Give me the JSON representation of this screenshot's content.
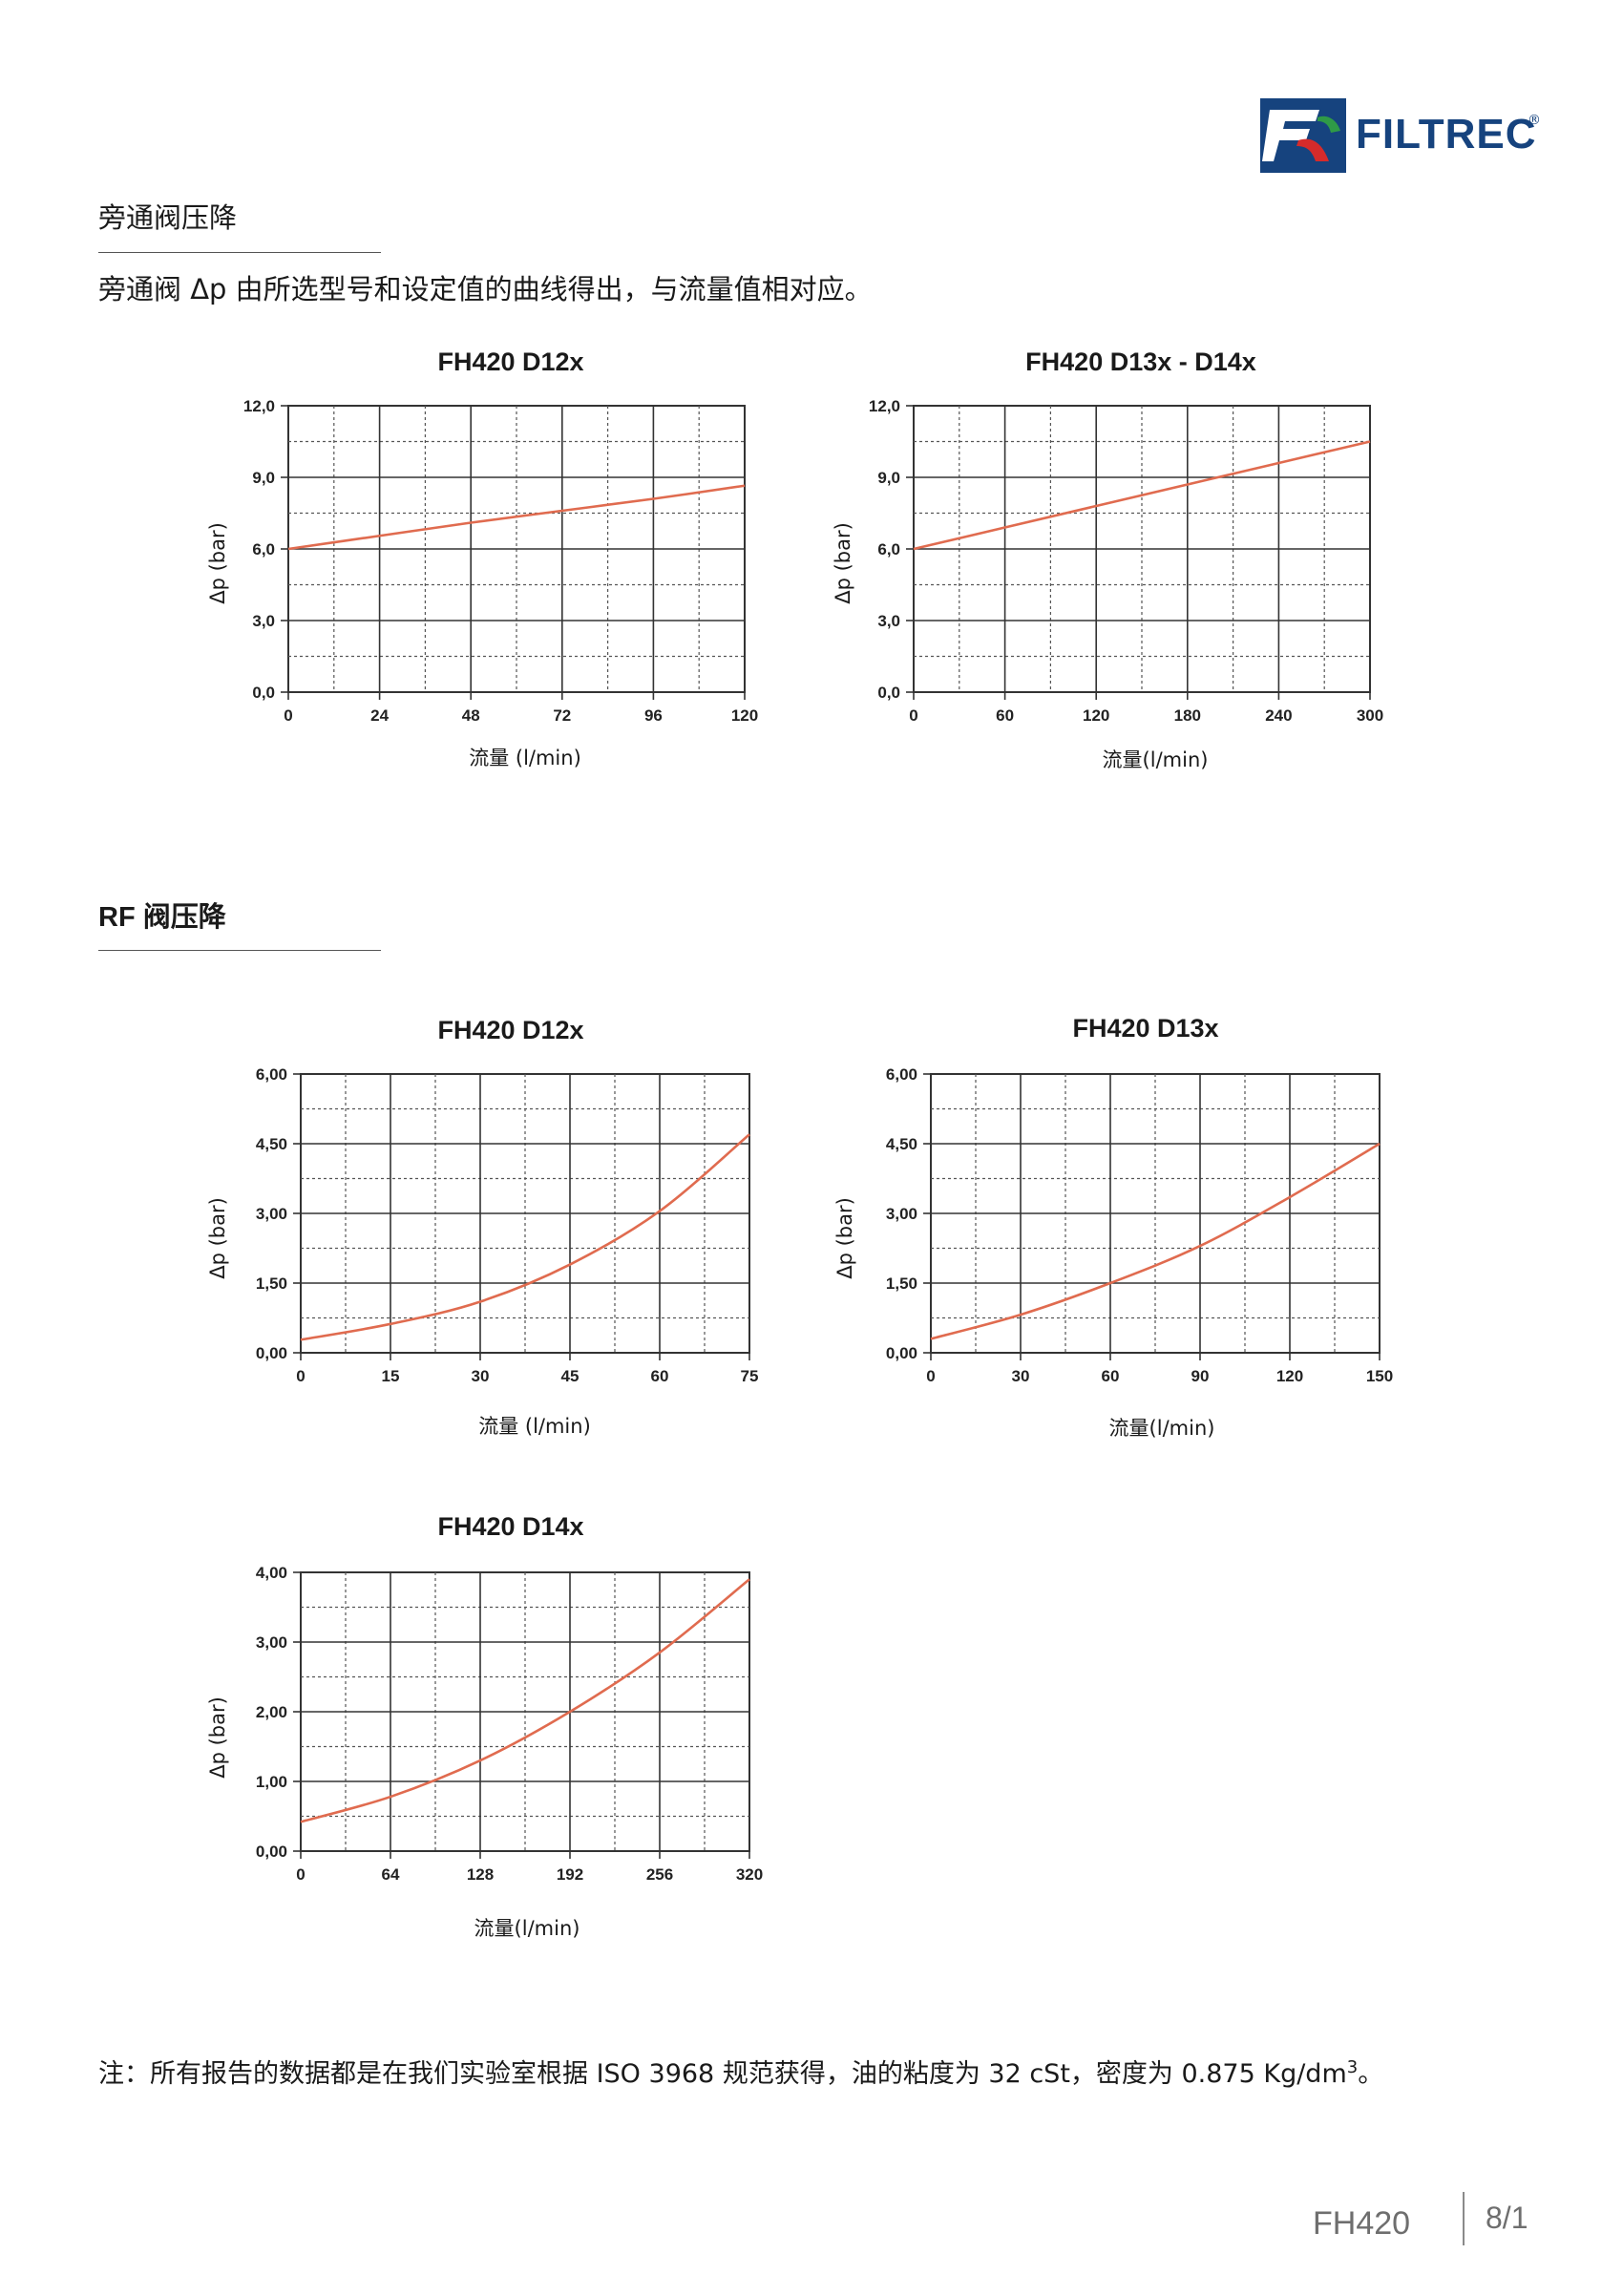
{
  "header": {
    "brand": "FILTREC",
    "brand_mark": "®",
    "colors": {
      "brand_blue": "#16437e",
      "brand_red": "#d52b2b",
      "brand_green": "#2f9a47"
    }
  },
  "section_bypass": {
    "title": "旁通阀压降",
    "description": "旁通阀 Δp 由所选型号和设定值的曲线得出，与流量值相对应。"
  },
  "section_rf": {
    "title": "RF 阀压降"
  },
  "note": {
    "text": "注：所有报告的数据都是在我们实验室根据 ISO 3968 规范获得，油的粘度为 32 cSt，密度为 0.875 Kg/dm",
    "sup": "3",
    "suffix": "。"
  },
  "footer": {
    "model": "FH420",
    "page": "8/1"
  },
  "chart_data": [
    {
      "id": "c1",
      "type": "line",
      "title": "FH420 D12x",
      "xlabel": "流量 (l/min)",
      "ylabel": "Δp (bar)",
      "xlim": [
        0,
        120
      ],
      "ylim": [
        0,
        12
      ],
      "xticks": [
        "0",
        "24",
        "48",
        "72",
        "96",
        "120"
      ],
      "yticks": [
        "0,0",
        "3,0",
        "6,0",
        "9,0",
        "12,0"
      ],
      "grid": true,
      "line_color": "#e06b4f",
      "x": [
        0,
        24,
        48,
        72,
        96,
        120
      ],
      "y": [
        6.0,
        6.55,
        7.1,
        7.6,
        8.1,
        8.65
      ]
    },
    {
      "id": "c2",
      "type": "line",
      "title": "FH420 D13x - D14x",
      "xlabel": "流量(l/min)",
      "ylabel": "Δp (bar)",
      "xlim": [
        0,
        300
      ],
      "ylim": [
        0,
        12
      ],
      "xticks": [
        "0",
        "60",
        "120",
        "180",
        "240",
        "300"
      ],
      "yticks": [
        "0,0",
        "3,0",
        "6,0",
        "9,0",
        "12,0"
      ],
      "grid": true,
      "line_color": "#e06b4f",
      "x": [
        0,
        60,
        120,
        180,
        240,
        300
      ],
      "y": [
        6.0,
        6.9,
        7.8,
        8.7,
        9.6,
        10.5
      ]
    },
    {
      "id": "c3",
      "type": "line",
      "title": "FH420 D12x",
      "xlabel": "流量 (l/min)",
      "ylabel": "Δp (bar)",
      "xlim": [
        0,
        75
      ],
      "ylim": [
        0,
        6
      ],
      "xticks": [
        "0",
        "15",
        "30",
        "45",
        "60",
        "75"
      ],
      "yticks": [
        "0,00",
        "1,50",
        "3,00",
        "4,50",
        "6,00"
      ],
      "grid": true,
      "line_color": "#e06b4f",
      "x": [
        0,
        15,
        30,
        45,
        60,
        75
      ],
      "y": [
        0.28,
        0.62,
        1.1,
        1.9,
        3.05,
        4.7
      ]
    },
    {
      "id": "c4",
      "type": "line",
      "title": "FH420 D13x",
      "xlabel": "流量(l/min)",
      "ylabel": "Δp (bar)",
      "xlim": [
        0,
        150
      ],
      "ylim": [
        0,
        6
      ],
      "xticks": [
        "0",
        "30",
        "60",
        "90",
        "120",
        "150"
      ],
      "yticks": [
        "0,00",
        "1,50",
        "3,00",
        "4,50",
        "6,00"
      ],
      "grid": true,
      "line_color": "#e06b4f",
      "x": [
        0,
        30,
        60,
        90,
        120,
        150
      ],
      "y": [
        0.3,
        0.82,
        1.5,
        2.3,
        3.35,
        4.5
      ]
    },
    {
      "id": "c5",
      "type": "line",
      "title": "FH420 D14x",
      "xlabel": "流量(l/min)",
      "ylabel": "Δp (bar)",
      "xlim": [
        0,
        320
      ],
      "ylim": [
        0,
        4
      ],
      "xticks": [
        "0",
        "64",
        "128",
        "192",
        "256",
        "320"
      ],
      "yticks": [
        "0,00",
        "1,00",
        "2,00",
        "3,00",
        "4,00"
      ],
      "grid": true,
      "line_color": "#e06b4f",
      "x": [
        0,
        64,
        128,
        192,
        256,
        320
      ],
      "y": [
        0.42,
        0.78,
        1.3,
        2.0,
        2.85,
        3.9
      ]
    }
  ]
}
